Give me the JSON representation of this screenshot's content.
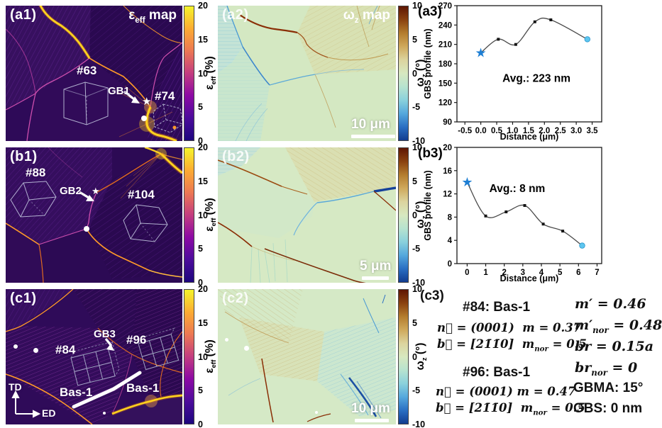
{
  "colorbars": {
    "eps": {
      "ticks": [
        "20",
        "15",
        "10",
        "5",
        "0"
      ],
      "label_main": "ε",
      "label_sub": "eff",
      "label_unit": " (%)",
      "stops": [
        "#f5f42b",
        "#fcab33",
        "#ec7754",
        "#c33d80",
        "#8c09a4",
        "#4c0c9b",
        "#1d067e"
      ]
    },
    "omega": {
      "ticks": [
        "10",
        "5",
        "0",
        "-5",
        "-10"
      ],
      "label_main": "ω",
      "label_sub": "z",
      "label_unit": " (°)",
      "stops": [
        "#5e1603",
        "#8a4210",
        "#b47d2e",
        "#cfa95c",
        "#dcd49e",
        "#d7e8c0",
        "#b7e3cf",
        "#8ad1dc",
        "#55a8dd",
        "#2a6fc3",
        "#123c8f"
      ]
    }
  },
  "panels": {
    "a1": {
      "label": "(a1)",
      "title_main": "ε",
      "title_sub": "eff",
      "title_rest": " map",
      "grain1": "#63",
      "grain2": "#74",
      "gb": "GB1",
      "star_icon": "★"
    },
    "a2": {
      "label": "(a2)",
      "title_main": "ω",
      "title_sub": "z",
      "title_rest": " map",
      "scalebar": "10 μm"
    },
    "b1": {
      "label": "(b1)",
      "grain1": "#88",
      "grain2": "#104",
      "gb": "GB2",
      "star_icon": "★"
    },
    "b2": {
      "label": "(b2)",
      "scalebar": "5 μm"
    },
    "c1": {
      "label": "(c1)",
      "grain1": "#84",
      "grain2": "#96",
      "gb": "GB3",
      "slip1": "Bas-1",
      "slip2": "Bas-1",
      "axis_v": "TD",
      "axis_h": "ED"
    },
    "c2": {
      "label": "(c2)",
      "scalebar": "10 μm"
    }
  },
  "c3": {
    "label": "(c3)",
    "g84_header": "#84: Bas-1",
    "g84_n": "n⃗ = (0001)  m = 0.37",
    "g84_b_pre": "b⃗ = [21̄1̄0]  m",
    "g84_b_sub": "nor",
    "g84_b_post": " = 0.5",
    "g96_header": "#96: Bas-1",
    "g96_n": "n⃗ = (0001) m = 0.47",
    "g96_b_pre": "b⃗ = [21̄1̄0]  m",
    "g96_b_sub": "nor",
    "g96_b_post": " = 0.5",
    "r1": "m′ = 0.46",
    "r2_pre": "m′",
    "r2_sub": "nor",
    "r2_post": " = 0.48",
    "r3": "br = 0.15a",
    "r4_pre": "br",
    "r4_sub": "nor",
    "r4_post": " = 0",
    "r5": "GBMA: 15°",
    "r6": "GBS: 0 nm"
  },
  "chart_data": [
    {
      "id": "a3",
      "type": "line",
      "panel_label": "(a3)",
      "title": "",
      "xlabel": "Distance (μm)",
      "ylabel": "GBS profile (nm)",
      "xlim": [
        -0.75,
        3.8
      ],
      "ylim": [
        90,
        270
      ],
      "xticks": [
        -0.5,
        0,
        0.5,
        1,
        1.5,
        2,
        2.5,
        3,
        3.5
      ],
      "xtick_labels": [
        "-0.5",
        "0.0",
        "0.5",
        "1.0",
        "1.5",
        "2.0",
        "2.5",
        "3.0",
        "3.5"
      ],
      "yticks": [
        90,
        120,
        150,
        180,
        210,
        240,
        270
      ],
      "x": [
        0,
        0.55,
        1.1,
        1.7,
        2.2,
        3.35
      ],
      "y": [
        197,
        218,
        210,
        245,
        248,
        218
      ],
      "start_marker": "star",
      "end_marker": "dot",
      "grid": false,
      "legend": null,
      "annotation": {
        "text": "Avg.: 223 nm",
        "x": 1.75,
        "y": 152
      },
      "line_color": "#4a4a4a",
      "marker_color": "#151515",
      "star_color": "#1e7fd4",
      "dot_color": "#5ec6ef"
    },
    {
      "id": "b3",
      "type": "line",
      "panel_label": "(b3)",
      "title": "",
      "xlabel": "Distance (μm)",
      "ylabel": "GBS profile (nm)",
      "xlim": [
        -0.55,
        7.25
      ],
      "ylim": [
        0,
        20
      ],
      "xticks": [
        0,
        1,
        2,
        3,
        4,
        5,
        6,
        7
      ],
      "xtick_labels": [
        "0",
        "1",
        "2",
        "3",
        "4",
        "5",
        "6",
        "7"
      ],
      "yticks": [
        0,
        4,
        8,
        12,
        16,
        20
      ],
      "x": [
        0,
        1,
        2.1,
        3.1,
        4.1,
        5.15,
        6.2
      ],
      "y": [
        14,
        8.2,
        8.9,
        10,
        6.8,
        5.6,
        3.1
      ],
      "start_marker": "star",
      "end_marker": "dot",
      "grid": false,
      "legend": null,
      "annotation": {
        "text": "Avg.: 8 nm",
        "x": 2.7,
        "y": 12.3
      },
      "line_color": "#4a4a4a",
      "marker_color": "#151515",
      "star_color": "#1e7fd4",
      "dot_color": "#5ec6ef"
    }
  ]
}
